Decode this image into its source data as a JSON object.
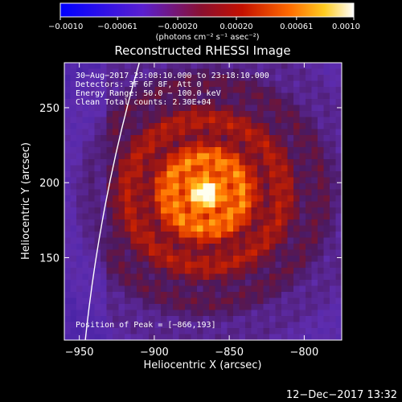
{
  "chart_data": {
    "type": "heatmap",
    "title": "Reconstructed RHESSI Image",
    "xlabel": "Heliocentric X (arcsec)",
    "ylabel": "Heliocentric Y (arcsec)",
    "xlim": [
      -960,
      -775
    ],
    "ylim": [
      95,
      280
    ],
    "xticks": [
      -950,
      -900,
      -850,
      -800
    ],
    "yticks": [
      150,
      200,
      250
    ],
    "colorbar": {
      "range": [
        -0.001,
        0.001
      ],
      "tick_labels": [
        "−0.0010",
        "−0.00061",
        "−0.00020",
        "0.00020",
        "0.00061",
        "0.0010"
      ],
      "tick_values": [
        -0.001,
        -0.00061,
        -0.0002,
        0.0002,
        0.00061,
        0.001
      ],
      "unit_label": "(photons cm⁻² s⁻¹ asec⁻²)"
    },
    "annotations": [
      "30−Aug−2017 23:08:10.000 to 23:18:10.000",
      "Detectors: 3F 6F 8F, Att 0",
      "Energy Range: 50.0 − 100.0 keV",
      "Clean    Total counts: 2.30E+04"
    ],
    "peak_label": "Position of Peak = [−866,193]",
    "peak": [
      -866,
      193
    ],
    "limb_color": "#ffffff",
    "grid": false
  },
  "footer": {
    "timestamp": "12−Dec−2017 13:32"
  }
}
